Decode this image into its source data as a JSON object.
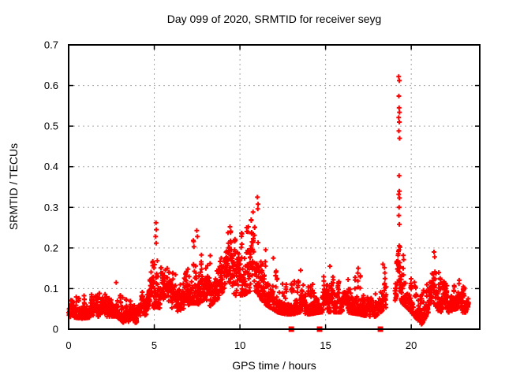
{
  "chart_data": {
    "type": "scatter",
    "title": "Day 099 of 2020, SRMTID for receiver seyg",
    "xlabel": "GPS time / hours",
    "ylabel": "SRMTID / TECUs",
    "xlim": [
      0,
      24
    ],
    "ylim": [
      0,
      0.7
    ],
    "xticks": [
      0,
      5,
      10,
      15,
      20
    ],
    "xtick_labels": [
      "0",
      "5",
      "10",
      "15",
      "20"
    ],
    "yticks": [
      0,
      0.1,
      0.2,
      0.3,
      0.4,
      0.5,
      0.6,
      0.7
    ],
    "ytick_labels": [
      "0",
      "0.1",
      "0.2",
      "0.3",
      "0.4",
      "0.5",
      "0.6",
      "0.7"
    ],
    "grid": true,
    "legend": "none",
    "marker": "plus",
    "marker_color": "#ff0000",
    "grid_color": "#a6a6a6",
    "border_color": "#000000",
    "text_color": "#000000",
    "background": "#ffffff",
    "data_x_start": 0.0,
    "data_x_end": 23.35,
    "gaps_hours": [
      [
        18.55,
        19.05
      ]
    ],
    "approx_points_per_hour": 118,
    "band_envelope": [
      [
        0.0,
        0.03,
        0.08
      ],
      [
        0.8,
        0.025,
        0.085
      ],
      [
        1.6,
        0.03,
        0.09
      ],
      [
        2.4,
        0.03,
        0.095
      ],
      [
        2.8,
        0.03,
        0.115
      ],
      [
        3.2,
        0.015,
        0.08
      ],
      [
        3.8,
        0.01,
        0.07
      ],
      [
        4.2,
        0.025,
        0.09
      ],
      [
        4.7,
        0.04,
        0.12
      ],
      [
        5.0,
        0.05,
        0.25
      ],
      [
        5.15,
        0.05,
        0.27
      ],
      [
        5.3,
        0.05,
        0.16
      ],
      [
        5.8,
        0.05,
        0.17
      ],
      [
        6.3,
        0.04,
        0.14
      ],
      [
        6.8,
        0.05,
        0.18
      ],
      [
        7.1,
        0.06,
        0.23
      ],
      [
        7.5,
        0.06,
        0.24
      ],
      [
        7.9,
        0.05,
        0.17
      ],
      [
        8.2,
        0.05,
        0.2
      ],
      [
        8.6,
        0.07,
        0.19
      ],
      [
        9.0,
        0.07,
        0.22
      ],
      [
        9.4,
        0.08,
        0.25
      ],
      [
        9.8,
        0.08,
        0.23
      ],
      [
        10.2,
        0.08,
        0.26
      ],
      [
        10.6,
        0.09,
        0.27
      ],
      [
        10.9,
        0.09,
        0.32
      ],
      [
        11.1,
        0.08,
        0.33
      ],
      [
        11.4,
        0.06,
        0.22
      ],
      [
        11.8,
        0.05,
        0.18
      ],
      [
        12.2,
        0.04,
        0.14
      ],
      [
        12.7,
        0.035,
        0.12
      ],
      [
        13.1,
        0.035,
        0.12
      ],
      [
        13.5,
        0.04,
        0.14
      ],
      [
        14.0,
        0.035,
        0.11
      ],
      [
        14.7,
        0.04,
        0.12
      ],
      [
        15.2,
        0.04,
        0.155
      ],
      [
        15.7,
        0.04,
        0.12
      ],
      [
        16.2,
        0.04,
        0.12
      ],
      [
        16.9,
        0.035,
        0.15
      ],
      [
        17.4,
        0.03,
        0.1
      ],
      [
        17.9,
        0.03,
        0.09
      ],
      [
        18.2,
        0.04,
        0.12
      ],
      [
        18.45,
        0.05,
        0.16
      ],
      [
        19.1,
        0.06,
        0.18
      ],
      [
        19.3,
        0.08,
        0.27
      ],
      [
        19.5,
        0.06,
        0.2
      ],
      [
        19.8,
        0.05,
        0.15
      ],
      [
        20.2,
        0.03,
        0.12
      ],
      [
        20.6,
        0.01,
        0.09
      ],
      [
        21.0,
        0.04,
        0.12
      ],
      [
        21.35,
        0.05,
        0.19
      ],
      [
        21.7,
        0.04,
        0.13
      ],
      [
        22.2,
        0.04,
        0.11
      ],
      [
        22.7,
        0.05,
        0.13
      ],
      [
        23.0,
        0.04,
        0.11
      ],
      [
        23.35,
        0.04,
        0.09
      ]
    ],
    "outlier_points": [
      [
        19.27,
        0.622
      ],
      [
        19.3,
        0.612
      ],
      [
        19.28,
        0.574
      ],
      [
        19.29,
        0.545
      ],
      [
        19.31,
        0.534
      ],
      [
        19.27,
        0.521
      ],
      [
        19.3,
        0.51
      ],
      [
        19.28,
        0.488
      ],
      [
        19.32,
        0.47
      ],
      [
        19.29,
        0.378
      ],
      [
        19.3,
        0.34
      ],
      [
        19.27,
        0.332
      ],
      [
        19.31,
        0.323
      ],
      [
        19.29,
        0.3
      ],
      [
        19.28,
        0.28
      ],
      [
        19.3,
        0.258
      ],
      [
        5.1,
        0.262
      ],
      [
        5.12,
        0.245
      ],
      [
        5.08,
        0.228
      ],
      [
        5.11,
        0.212
      ],
      [
        7.48,
        0.243
      ],
      [
        7.52,
        0.228
      ],
      [
        9.42,
        0.252
      ],
      [
        9.45,
        0.238
      ],
      [
        11.02,
        0.325
      ],
      [
        11.06,
        0.308
      ],
      [
        11.04,
        0.296
      ],
      [
        2.78,
        0.115
      ],
      [
        11.95,
        0.175
      ],
      [
        13.55,
        0.145
      ],
      [
        15.25,
        0.155
      ],
      [
        16.9,
        0.15
      ],
      [
        18.35,
        0.16
      ],
      [
        21.33,
        0.19
      ],
      [
        21.37,
        0.178
      ]
    ],
    "zero_axis_squares_x": [
      13.0,
      14.65,
      18.2
    ]
  }
}
